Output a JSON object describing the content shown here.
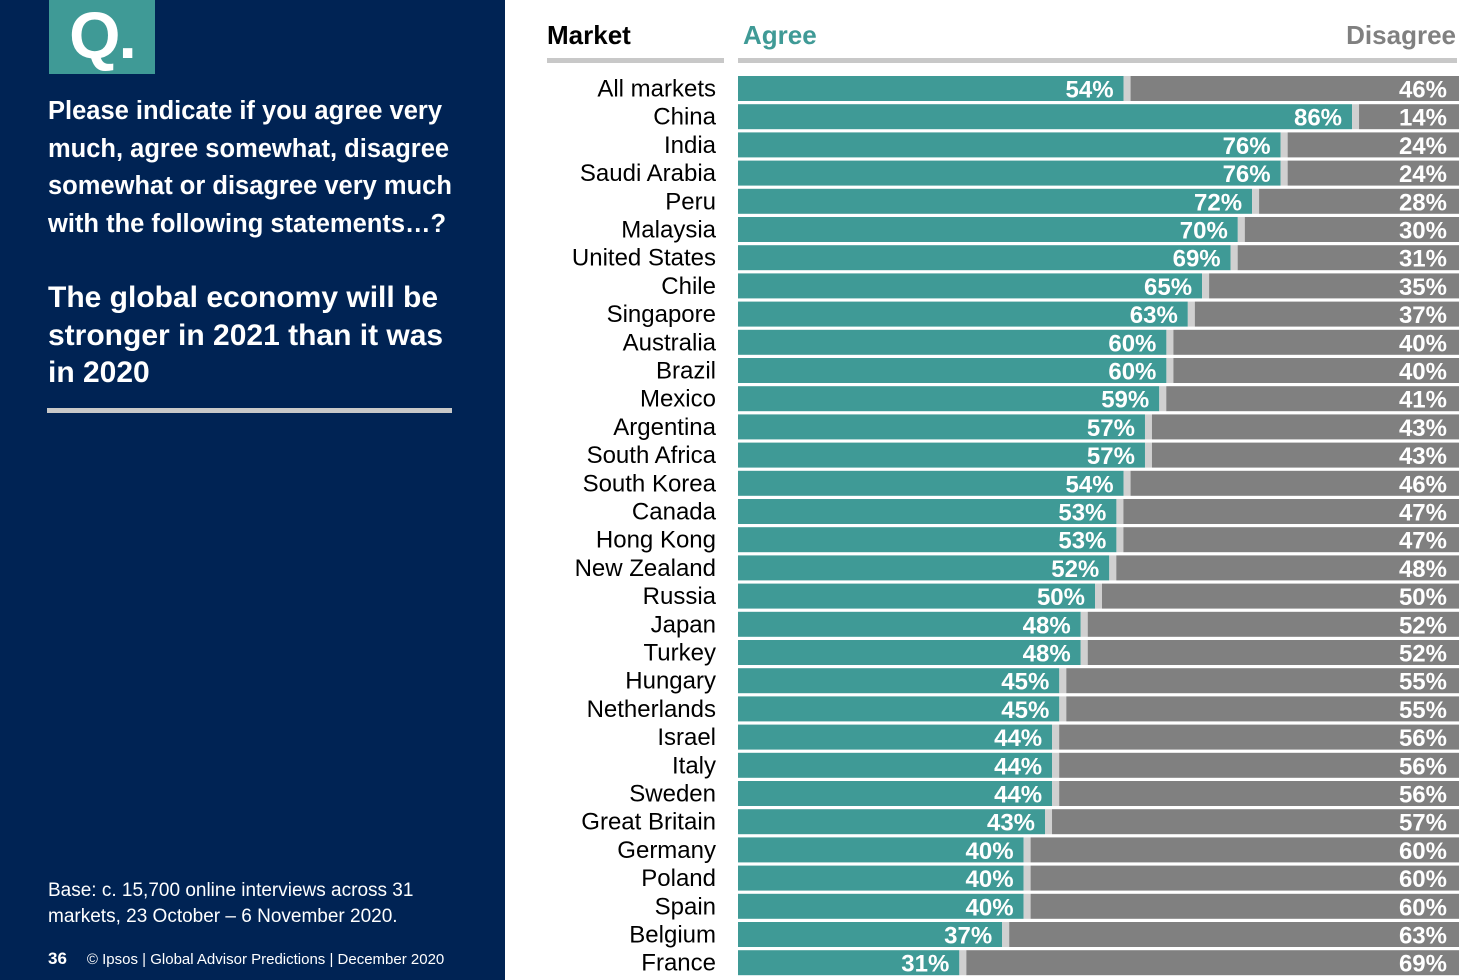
{
  "panel": {
    "q_badge": "Q.",
    "question": "Please indicate if you agree very much, agree somewhat, disagree somewhat or disagree very much with the following statements…?",
    "statement": "The global economy will be stronger in 2021 than it was in 2020",
    "base": "Base: c. 15,700 online interviews across 31 markets,  23 October – 6 November 2020.",
    "page_number": "36",
    "footer": "© Ipsos | Global Advisor Predictions | December 2020"
  },
  "colors": {
    "panel": "#002354",
    "agree": "#3f9a96",
    "disagree": "#808080",
    "separator": "#d0d0d0"
  },
  "chart_data": {
    "type": "bar",
    "orientation": "horizontal-stacked-100",
    "category_header": "Market",
    "categories": [
      "All markets",
      "China",
      "India",
      "Saudi Arabia",
      "Peru",
      "Malaysia",
      "United States",
      "Chile",
      "Singapore",
      "Australia",
      "Brazil",
      "Mexico",
      "Argentina",
      "South Africa",
      "South Korea",
      "Canada",
      "Hong Kong",
      "New Zealand",
      "Russia",
      "Japan",
      "Turkey",
      "Hungary",
      "Netherlands",
      "Israel",
      "Italy",
      "Sweden",
      "Great Britain",
      "Germany",
      "Poland",
      "Spain",
      "Belgium",
      "France"
    ],
    "series": [
      {
        "name": "Agree",
        "values": [
          54,
          86,
          76,
          76,
          72,
          70,
          69,
          65,
          63,
          60,
          60,
          59,
          57,
          57,
          54,
          53,
          53,
          52,
          50,
          48,
          48,
          45,
          45,
          44,
          44,
          44,
          43,
          40,
          40,
          40,
          37,
          31
        ]
      },
      {
        "name": "Disagree",
        "values": [
          46,
          14,
          24,
          24,
          28,
          30,
          31,
          35,
          37,
          40,
          40,
          41,
          43,
          43,
          46,
          47,
          47,
          48,
          50,
          52,
          52,
          55,
          55,
          56,
          56,
          56,
          57,
          60,
          60,
          60,
          63,
          69
        ]
      }
    ],
    "value_suffix": "%",
    "xlim": [
      0,
      100
    ]
  }
}
